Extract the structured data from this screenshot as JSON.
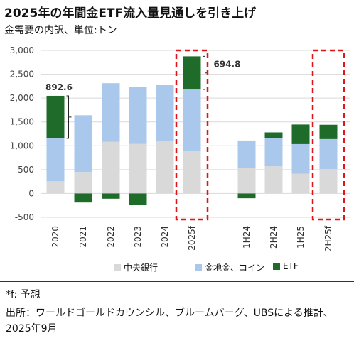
{
  "header": {
    "title": "2025年の年間金ETF流入量見通しを引き上げ",
    "subtitle": "金需要の内訳、単位:トン"
  },
  "footer": {
    "note": "*f: 予想",
    "source": "出所：ワールドゴールドカウンシル、ブルームバーグ、UBSによる推計、2025年9月"
  },
  "chart_data": {
    "type": "bar",
    "stacked": true,
    "categories": [
      "2020",
      "2021",
      "2022",
      "2023",
      "2024",
      "2025f",
      "1H24",
      "2H24",
      "1H25",
      "2H25f"
    ],
    "series": [
      {
        "name": "中央銀行",
        "color": "#d9d9d9",
        "values": [
          255,
          450,
          1082,
          1037,
          1092,
          900,
          530,
          570,
          415,
          510
        ]
      },
      {
        "name": "金地金、コイン",
        "color": "#a9c8ec",
        "values": [
          900,
          1190,
          1230,
          1200,
          1180,
          1280,
          580,
          590,
          620,
          630
        ]
      },
      {
        "name": "ETF",
        "color": "#1e6b2a",
        "values": [
          892.6,
          -190,
          -110,
          -245,
          0,
          694.8,
          -100,
          120,
          410,
          300
        ]
      }
    ],
    "yticks": [
      3000,
      2500,
      2000,
      1500,
      1000,
      500,
      0,
      -500
    ],
    "ytick_labels": [
      "3,000",
      "2,500",
      "2,000",
      "1,500",
      "1,000",
      "500",
      "0",
      "-500"
    ],
    "ylim": [
      -500,
      3000
    ],
    "annotations": [
      {
        "category": "2020",
        "label": "892.6"
      },
      {
        "category": "2025f",
        "label": "694.8"
      }
    ],
    "highlighted": [
      "2025f",
      "2H25f"
    ],
    "legend_position": "bottom"
  }
}
